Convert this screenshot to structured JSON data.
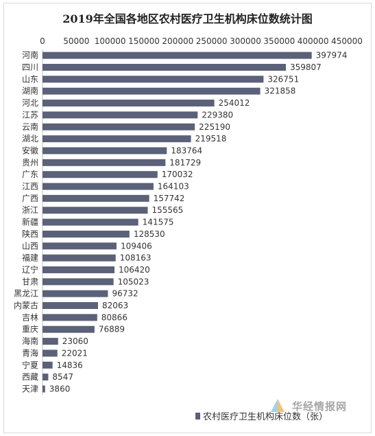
{
  "chart_data": {
    "type": "bar",
    "orientation": "horizontal",
    "title": "2019年全国各地区农村医疗卫生机构床位数统计图",
    "categories": [
      "河南",
      "四川",
      "山东",
      "湖南",
      "河北",
      "江苏",
      "云南",
      "湖北",
      "安徽",
      "贵州",
      "广东",
      "江西",
      "广西",
      "浙江",
      "新疆",
      "陕西",
      "山西",
      "福建",
      "辽宁",
      "甘肃",
      "黑龙江",
      "内蒙古",
      "吉林",
      "重庆",
      "海南",
      "青海",
      "宁夏",
      "西藏",
      "天津"
    ],
    "series": [
      {
        "name": "农村医疗卫生机构床位数（张）",
        "values": [
          397974,
          359807,
          326751,
          321858,
          254012,
          229380,
          225190,
          219518,
          183764,
          181729,
          170032,
          164103,
          157742,
          155565,
          141575,
          128530,
          109406,
          108163,
          106420,
          105023,
          96732,
          82063,
          80866,
          76889,
          23060,
          22021,
          14836,
          8547,
          3860
        ]
      }
    ],
    "xlim": [
      0,
      450000
    ],
    "ticks": [
      0,
      50000,
      100000,
      150000,
      200000,
      250000,
      300000,
      350000,
      400000,
      450000
    ],
    "axis_position": "top",
    "grid": false,
    "legend_position": "bottom-right",
    "bar_color": "#5b6178",
    "data_labels": true
  },
  "watermark": {
    "text": "华经情报网",
    "icon": "watermark-logo-icon"
  }
}
